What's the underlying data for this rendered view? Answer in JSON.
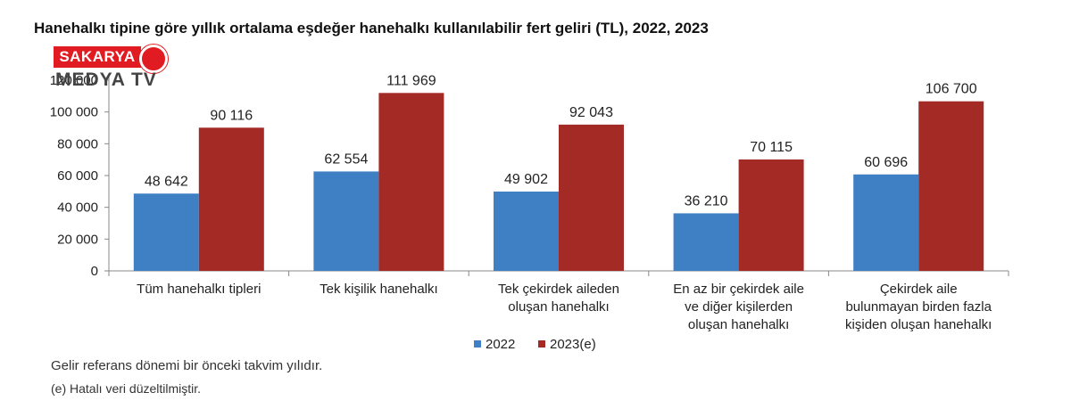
{
  "chart_data": {
    "type": "bar",
    "title": "Hanehalkı tipine göre yıllık ortalama eşdeğer hanehalkı kullanılabilir fert geliri (TL), 2022, 2023",
    "categories": [
      [
        "Tüm hanehalkı tipleri"
      ],
      [
        "Tek kişilik hanehalkı"
      ],
      [
        "Tek çekirdek aileden",
        "oluşan hanehalkı"
      ],
      [
        "En az bir çekirdek aile",
        "ve diğer kişilerden",
        "oluşan hanehalkı"
      ],
      [
        "Çekirdek aile",
        "bulunmayan birden fazla",
        "kişiden oluşan hanehalkı"
      ]
    ],
    "series": [
      {
        "name": "2022",
        "color": "#3f7fc4",
        "values": [
          48642,
          62554,
          49902,
          36210,
          60696
        ],
        "labels": [
          "48 642",
          "62 554",
          "49 902",
          "36 210",
          "60 696"
        ]
      },
      {
        "name": "2023(e)",
        "color": "#a42a26",
        "values": [
          90116,
          111969,
          92043,
          70115,
          106700
        ],
        "labels": [
          "90 116",
          "111 969",
          "92 043",
          "70 115",
          "106 700"
        ]
      }
    ],
    "ylim": [
      0,
      120000
    ],
    "yticks": [
      0,
      20000,
      40000,
      60000,
      80000,
      100000,
      120000
    ],
    "ytick_labels": [
      "0",
      "20 000",
      "40 000",
      "60 000",
      "80 000",
      "100 000",
      "120 000"
    ],
    "xlabel": "",
    "ylabel": "",
    "grid": false,
    "legend_position": "bottom-center"
  },
  "logo": {
    "top_text": "SAKARYA",
    "bottom_text": "MEDYA TV"
  },
  "notes": [
    "Gelir referans dönemi bir önceki takvim yılıdır.",
    "(e) Hatalı veri düzeltilmiştir."
  ]
}
